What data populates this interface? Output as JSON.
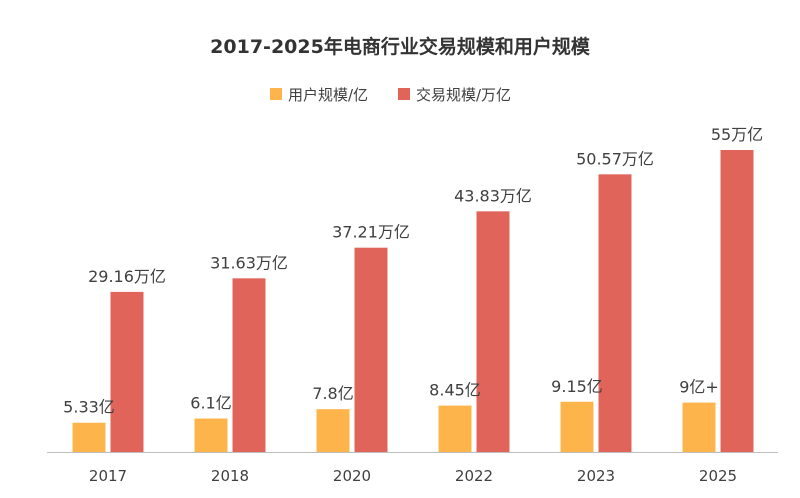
{
  "chart_data": {
    "type": "bar",
    "title": "2017-2025年电商行业交易规模和用户规模",
    "categories": [
      "2017",
      "2018",
      "2020",
      "2022",
      "2023",
      "2025"
    ],
    "series": [
      {
        "name": "用户规模/亿",
        "color": "#FDB44B",
        "values": [
          5.33,
          6.1,
          7.8,
          8.45,
          9.15,
          9
        ],
        "labels": [
          "5.33亿",
          "6.1亿",
          "7.8亿",
          "8.45亿",
          "9.15亿",
          "9亿+"
        ]
      },
      {
        "name": "交易规模/万亿",
        "color": "#E0645A",
        "values": [
          29.16,
          31.63,
          37.21,
          43.83,
          50.57,
          55
        ],
        "labels": [
          "29.16万亿",
          "31.63万亿",
          "37.21万亿",
          "43.83万亿",
          "50.57万亿",
          "55万亿"
        ]
      }
    ],
    "ylim": [
      0,
      60
    ],
    "grid": false,
    "legend": "top-center",
    "axis_color": "#BFBFBF"
  }
}
